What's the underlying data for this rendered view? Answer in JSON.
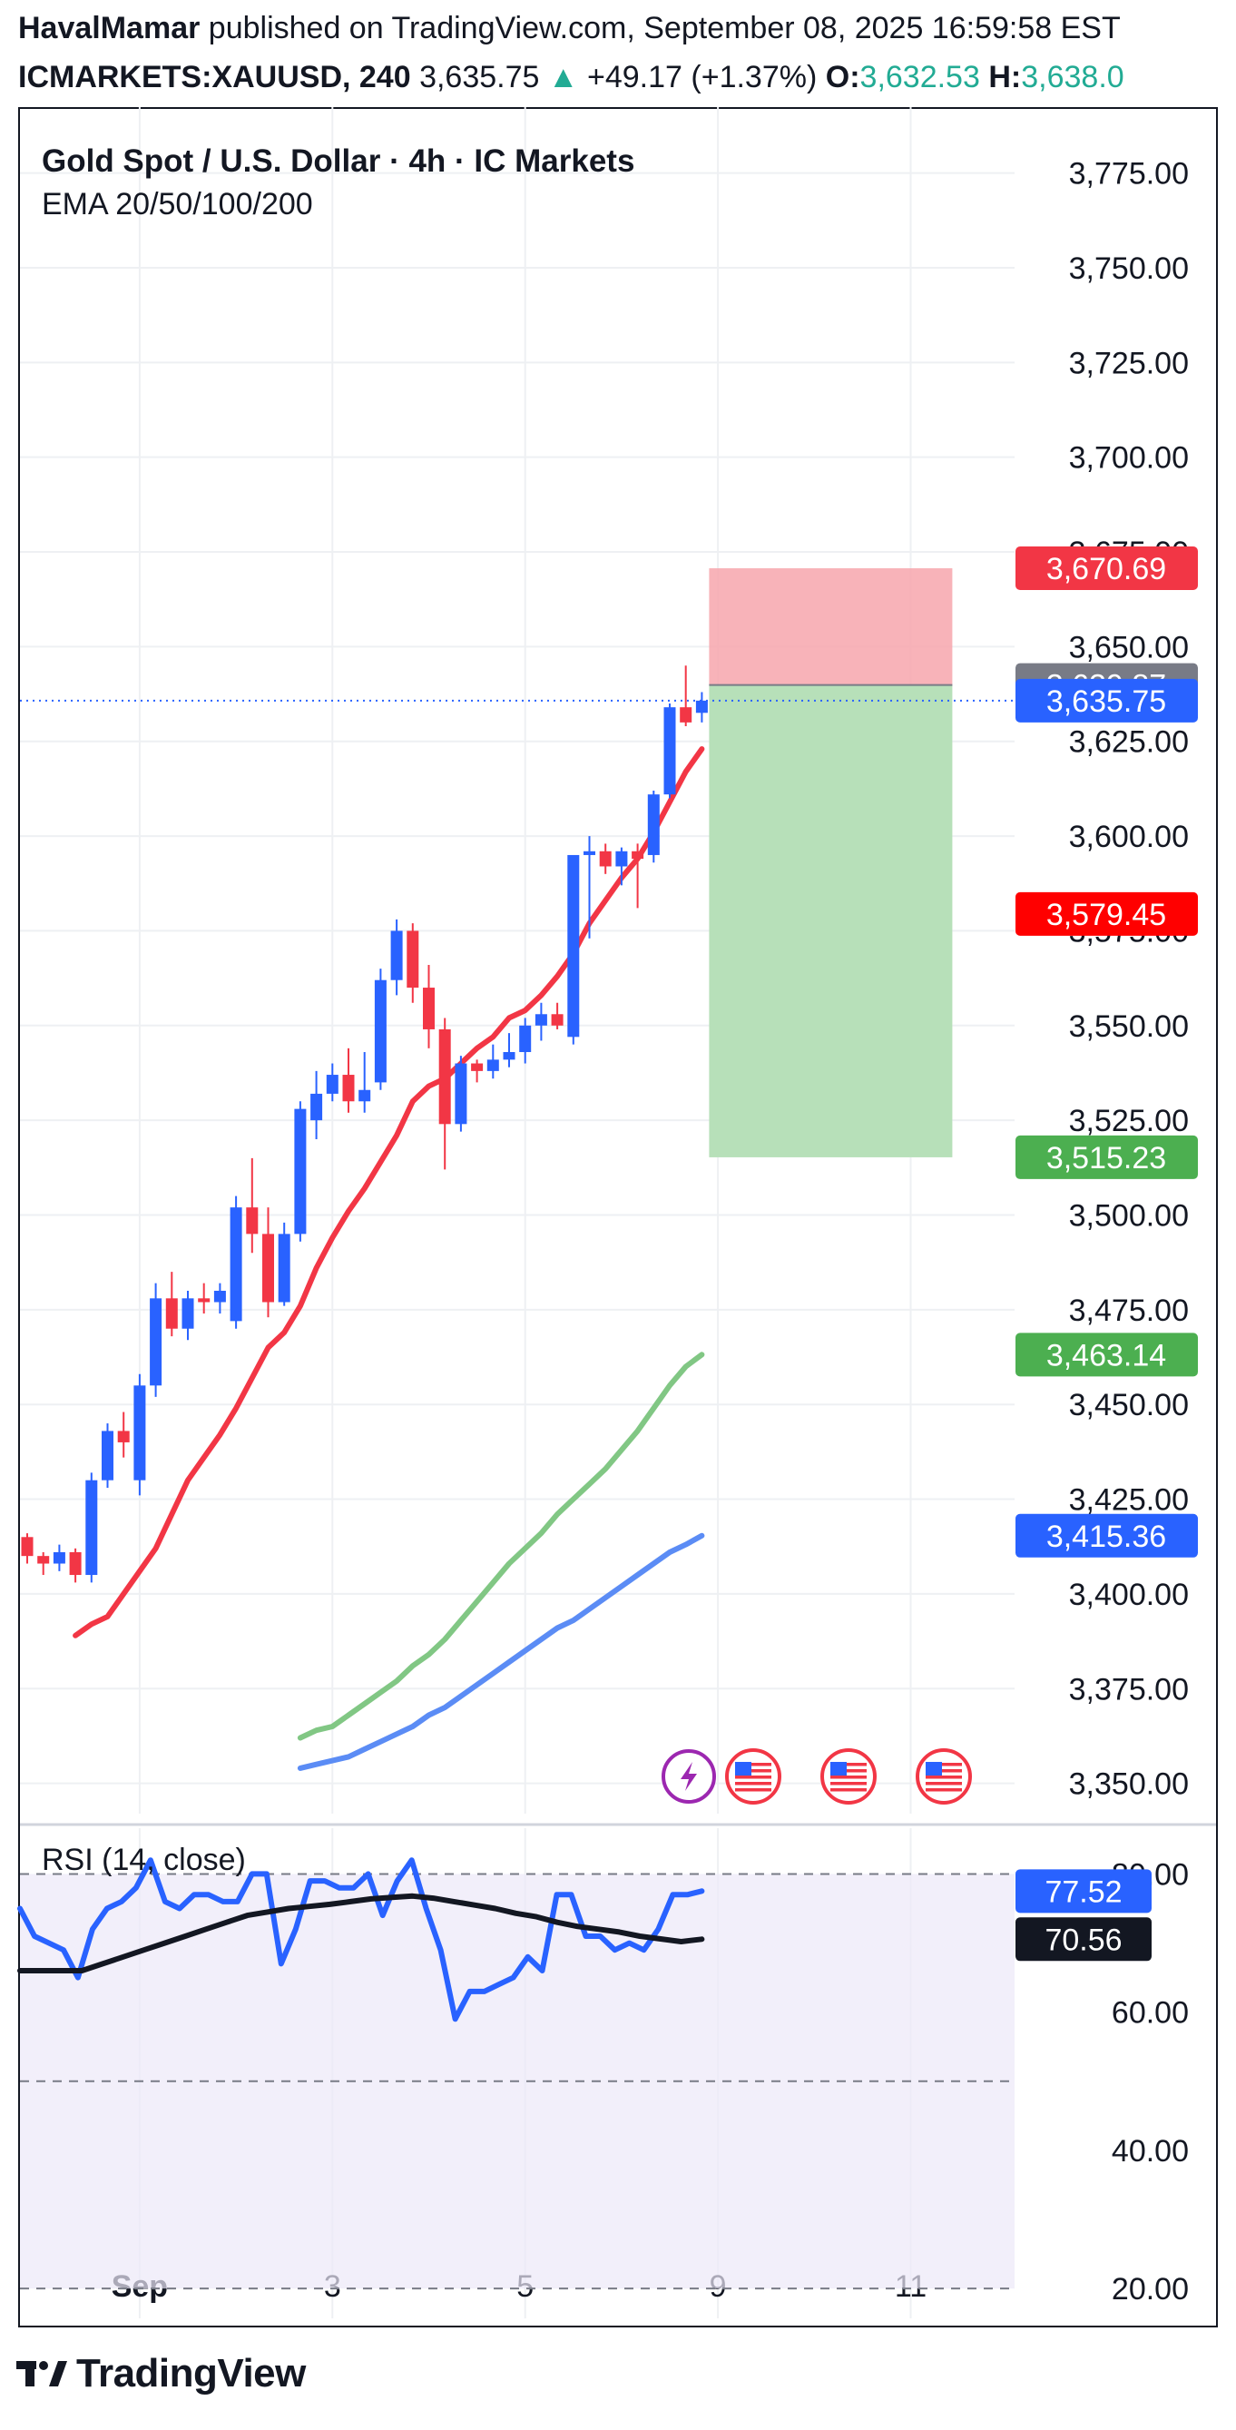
{
  "header": {
    "author": "HavalMamar",
    "published_text": "published on TradingView.com, September 08, 2025 16:59:58 EST",
    "symbol": "ICMARKETS:XAUUSD, 240",
    "last": "3,635.75",
    "arrow": "▲",
    "change": "+49.17 (+1.37%)",
    "open_label": "O:",
    "open": "3,632.53",
    "high_label": "H:",
    "high": "3,638.0"
  },
  "legend": {
    "title": "Gold Spot / U.S. Dollar · 4h · IC Markets",
    "indicators": "EMA 20/50/100/200"
  },
  "footer": {
    "brand": "TradingView"
  },
  "chart_data": [
    {
      "type": "candlestick",
      "title": "Gold Spot / U.S. Dollar · 4h · IC Markets",
      "ylim": [
        3342,
        3790
      ],
      "y_ticks": [
        "3,775.00",
        "3,750.00",
        "3,725.00",
        "3,700.00",
        "3,675.00",
        "3,650.00",
        "3,625.00",
        "3,600.00",
        "3,575.00",
        "3,550.00",
        "3,525.00",
        "3,500.00",
        "3,475.00",
        "3,450.00",
        "3,425.00",
        "3,400.00",
        "3,375.00",
        "3,350.00"
      ],
      "y_tick_values": [
        3775,
        3750,
        3725,
        3700,
        3675,
        3650,
        3625,
        3600,
        3575,
        3550,
        3525,
        3500,
        3475,
        3450,
        3425,
        3400,
        3375,
        3350
      ],
      "x_ticks": [
        "Sep",
        "3",
        "5",
        "9",
        "11"
      ],
      "x_tick_index": [
        7,
        19,
        31,
        43,
        55
      ],
      "grid": true,
      "candles": [
        [
          3415,
          3416,
          3408,
          3410
        ],
        [
          3410,
          3411,
          3405,
          3408
        ],
        [
          3408,
          3413,
          3406,
          3411
        ],
        [
          3411,
          3412,
          3403,
          3405
        ],
        [
          3405,
          3432,
          3403,
          3430
        ],
        [
          3430,
          3445,
          3428,
          3443
        ],
        [
          3443,
          3448,
          3436,
          3440
        ],
        [
          3430,
          3458,
          3426,
          3455
        ],
        [
          3455,
          3482,
          3452,
          3478
        ],
        [
          3478,
          3485,
          3468,
          3470
        ],
        [
          3470,
          3480,
          3467,
          3478
        ],
        [
          3478,
          3482,
          3474,
          3477
        ],
        [
          3477,
          3482,
          3474,
          3480
        ],
        [
          3472,
          3505,
          3470,
          3502
        ],
        [
          3502,
          3515,
          3490,
          3495
        ],
        [
          3495,
          3502,
          3473,
          3477
        ],
        [
          3477,
          3498,
          3476,
          3495
        ],
        [
          3495,
          3530,
          3493,
          3528
        ],
        [
          3525,
          3538,
          3520,
          3532
        ],
        [
          3532,
          3540,
          3530,
          3537
        ],
        [
          3537,
          3544,
          3527,
          3530
        ],
        [
          3530,
          3543,
          3527,
          3533
        ],
        [
          3535,
          3565,
          3533,
          3562
        ],
        [
          3562,
          3578,
          3558,
          3575
        ],
        [
          3575,
          3577,
          3556,
          3560
        ],
        [
          3560,
          3566,
          3544,
          3549
        ],
        [
          3549,
          3552,
          3512,
          3524
        ],
        [
          3524,
          3542,
          3522,
          3540
        ],
        [
          3540,
          3541,
          3535,
          3538
        ],
        [
          3538,
          3545,
          3536,
          3541
        ],
        [
          3541,
          3548,
          3539,
          3543
        ],
        [
          3543,
          3552,
          3540,
          3550
        ],
        [
          3550,
          3556,
          3546,
          3553
        ],
        [
          3553,
          3556,
          3549,
          3550
        ],
        [
          3547,
          3592,
          3545,
          3595
        ],
        [
          3595,
          3600,
          3573,
          3596
        ],
        [
          3596,
          3598,
          3590,
          3592
        ],
        [
          3592,
          3597,
          3587,
          3596
        ],
        [
          3596,
          3598,
          3581,
          3594
        ],
        [
          3595,
          3612,
          3593,
          3611
        ],
        [
          3611,
          3635,
          3610,
          3634
        ],
        [
          3634,
          3645,
          3629,
          3630
        ],
        [
          3632.53,
          3638,
          3630,
          3635.75
        ]
      ],
      "series": [
        {
          "name": "EMA 20",
          "color": "#f23645",
          "values": [
            3389,
            3392,
            3394,
            3400,
            3406,
            3412,
            3421,
            3430,
            3436,
            3442,
            3449,
            3457,
            3465,
            3469,
            3476,
            3486,
            3494,
            3501,
            3507,
            3514,
            3521,
            3530,
            3534,
            3536,
            3540,
            3544,
            3547,
            3552,
            3554,
            3558,
            3563,
            3569,
            3577,
            3583,
            3589,
            3594,
            3601,
            3609,
            3617,
            3623
          ]
        },
        {
          "name": "EMA 50",
          "color": "#81c784",
          "values": [
            3362,
            3364,
            3365,
            3368,
            3371,
            3374,
            3377,
            3381,
            3384,
            3388,
            3393,
            3398,
            3403,
            3408,
            3412,
            3416,
            3421,
            3425,
            3429,
            3433,
            3438,
            3443,
            3449,
            3455,
            3460,
            3463.14
          ]
        },
        {
          "name": "EMA 100",
          "color": "#5b8cf5",
          "values": [
            3354,
            3355,
            3356,
            3357,
            3359,
            3361,
            3363,
            3365,
            3368,
            3370,
            3373,
            3376,
            3379,
            3382,
            3385,
            3388,
            3391,
            3393,
            3396,
            3399,
            3402,
            3405,
            3408,
            3411,
            3413,
            3415.36
          ]
        }
      ],
      "position": {
        "entry": 3639.87,
        "stop": 3670.69,
        "target": 3515.23
      },
      "price_labels": [
        {
          "value": 3670.69,
          "text": "3,670.69",
          "color": "#f23645"
        },
        {
          "value": 3639.87,
          "text": "3,639.87",
          "color": "#787b86"
        },
        {
          "value": 3635.75,
          "text": "3,635.75",
          "color": "#2962ff"
        },
        {
          "value": 3579.45,
          "text": "3,579.45",
          "color": "#ff0000"
        },
        {
          "value": 3515.23,
          "text": "3,515.23",
          "color": "#4caf50"
        },
        {
          "value": 3463.14,
          "text": "3,463.14",
          "color": "#4caf50"
        },
        {
          "value": 3415.36,
          "text": "3,415.36",
          "color": "#2962ff"
        }
      ],
      "events": [
        "lightning",
        "us-flag",
        "us-flag",
        "us-flag"
      ]
    },
    {
      "type": "line",
      "title": "RSI (14, close)",
      "ylim": [
        17,
        84
      ],
      "y_ticks": [
        "80.00",
        "60.00",
        "40.00",
        "20.00"
      ],
      "y_tick_values": [
        80,
        60,
        40,
        20
      ],
      "levels": [
        80,
        50,
        20
      ],
      "series": [
        {
          "name": "RSI",
          "color": "#2962ff",
          "values": [
            75,
            71,
            70,
            69,
            65,
            72,
            75,
            76,
            78,
            82,
            76,
            75,
            77,
            77,
            76,
            76,
            80,
            80,
            67,
            72,
            79,
            79,
            78,
            78,
            80,
            74,
            79,
            82,
            75,
            69,
            59,
            63,
            63,
            64,
            65,
            68,
            66,
            77,
            77,
            71,
            71,
            69,
            70,
            69,
            72,
            77,
            77,
            77.52
          ]
        },
        {
          "name": "Signal",
          "color": "#131722",
          "values": [
            66,
            66,
            66,
            66,
            67,
            68,
            69,
            70,
            71,
            72,
            73,
            74,
            74.5,
            75,
            75.3,
            75.6,
            76,
            76.4,
            76.6,
            76.8,
            76.5,
            76,
            75.5,
            75,
            74.3,
            73.8,
            73,
            72.4,
            72,
            71.6,
            71,
            70.6,
            70.2,
            70.56
          ]
        }
      ],
      "value_labels": [
        {
          "value": 77.52,
          "text": "77.52",
          "color": "#2962ff"
        },
        {
          "value": 70.56,
          "text": "70.56",
          "color": "#131722"
        }
      ]
    }
  ]
}
